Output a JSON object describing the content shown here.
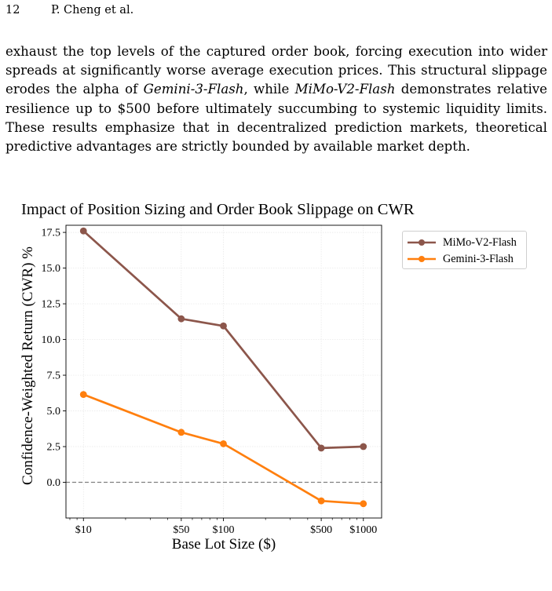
{
  "header": {
    "page_number": "12",
    "authors": "P. Cheng et al."
  },
  "paragraph": {
    "parts": [
      "exhaust the top levels of the captured order book, forcing execution into wider spreads at significantly worse average execution prices. This structural slippage erodes the alpha of ",
      "Gemini-3-Flash",
      ", while ",
      "MiMo-V2-Flash",
      " demonstrates relative resilience up to $500 before ultimately succumbing to systemic liquidity limits. These results emphasize that in decentralized prediction markets, theoretical predictive advantages are strictly bounded by available market depth."
    ]
  },
  "chart_data": {
    "type": "line",
    "title": "Impact of Position Sizing and Order Book Slippage on CWR",
    "xlabel": "Base Lot Size ($)",
    "ylabel": "Confidence-Weighted Return (CWR) %",
    "x_scale": "log",
    "x": [
      10,
      50,
      100,
      500,
      1000
    ],
    "x_tick_labels": [
      "$10",
      "$50",
      "$100",
      "$500",
      "$1000"
    ],
    "xlim": [
      7.5,
      1350
    ],
    "ylim": [
      -2.5,
      18.0
    ],
    "y_ticks": [
      0.0,
      2.5,
      5.0,
      7.5,
      10.0,
      12.5,
      15.0,
      17.5
    ],
    "y_tick_labels": [
      "0.0",
      "2.5",
      "5.0",
      "7.5",
      "10.0",
      "12.5",
      "15.0",
      "17.5"
    ],
    "grid": true,
    "reference_line": {
      "y": 0.0,
      "style": "dashed",
      "color": "#808080"
    },
    "legend_position": "outside-right-top",
    "series": [
      {
        "name": "MiMo-V2-Flash",
        "color": "#8c564b",
        "values": [
          17.6,
          11.45,
          10.95,
          2.4,
          2.5
        ]
      },
      {
        "name": "Gemini-3-Flash",
        "color": "#ff7f0e",
        "values": [
          6.15,
          3.5,
          2.7,
          -1.3,
          -1.5
        ]
      }
    ]
  }
}
